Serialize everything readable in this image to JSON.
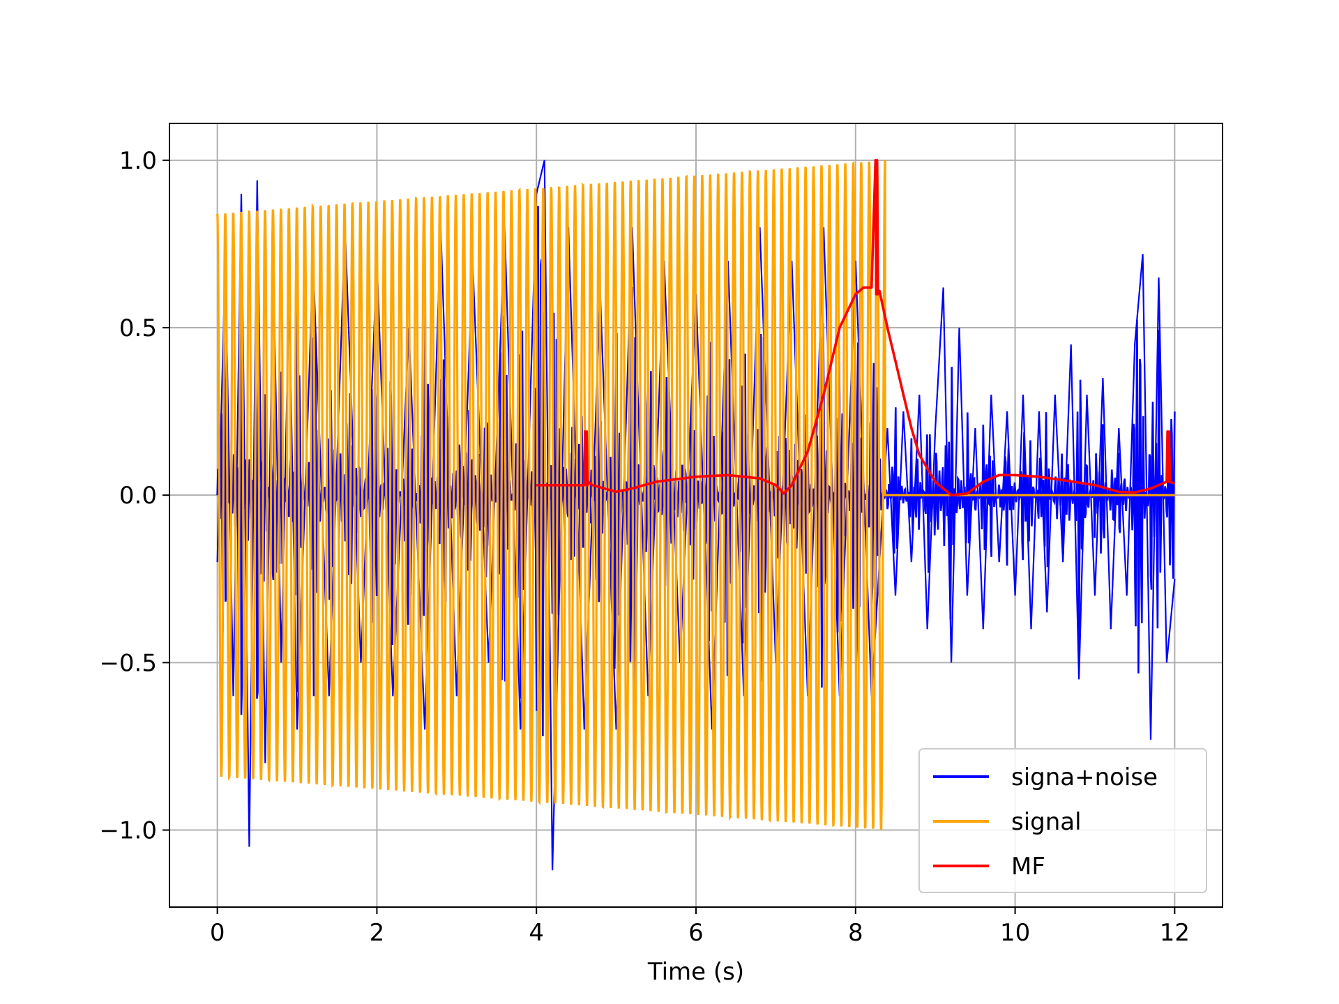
{
  "chart_data": {
    "type": "line",
    "title": "",
    "xlabel": "Time (s)",
    "ylabel": "",
    "xlim": [
      -0.6,
      12.6
    ],
    "ylim": [
      -1.23,
      1.11
    ],
    "xticks": [
      0,
      2,
      4,
      6,
      8,
      10,
      12
    ],
    "xtick_labels": [
      "0",
      "2",
      "4",
      "6",
      "8",
      "10",
      "12"
    ],
    "yticks": [
      1.0,
      0.5,
      0.0,
      -0.5,
      -1.0
    ],
    "ytick_labels": [
      "1.0",
      "0.5",
      "0.0",
      "−0.5",
      "−1.0"
    ],
    "grid": true,
    "legend_position": "lower-right",
    "colors": {
      "noise": "#0000ff",
      "signal": "#ffa500",
      "mf": "#ff0000",
      "grid": "#b0b0b0"
    },
    "series": [
      {
        "name": "signa+noise",
        "color": "#0000ff",
        "description_sampled": true,
        "x": [
          0.0,
          0.1,
          0.2,
          0.3,
          0.4,
          0.5,
          0.6,
          0.7,
          0.8,
          0.9,
          1.0,
          1.2,
          1.4,
          1.6,
          1.8,
          2.0,
          2.2,
          2.4,
          2.6,
          2.8,
          3.0,
          3.2,
          3.4,
          3.6,
          3.8,
          4.0,
          4.1,
          4.2,
          4.4,
          4.6,
          4.8,
          5.0,
          5.2,
          5.4,
          5.6,
          5.8,
          6.0,
          6.2,
          6.4,
          6.6,
          6.8,
          7.0,
          7.2,
          7.4,
          7.6,
          7.8,
          8.0,
          8.2,
          8.4,
          8.5,
          8.6,
          8.7,
          8.8,
          8.9,
          9.0,
          9.1,
          9.2,
          9.3,
          9.4,
          9.5,
          9.6,
          9.7,
          9.8,
          9.9,
          10.0,
          10.1,
          10.2,
          10.3,
          10.4,
          10.5,
          10.6,
          10.7,
          10.8,
          10.9,
          11.0,
          11.1,
          11.2,
          11.3,
          11.4,
          11.5,
          11.6,
          11.7,
          11.8,
          11.9,
          12.0
        ],
        "values": [
          -0.2,
          0.7,
          -0.6,
          0.9,
          -1.05,
          0.94,
          -0.8,
          0.7,
          -0.5,
          0.6,
          -0.7,
          0.7,
          -0.6,
          0.8,
          -0.5,
          0.7,
          -0.6,
          0.5,
          -0.7,
          0.8,
          -0.6,
          0.7,
          -0.5,
          0.8,
          -0.7,
          0.9,
          1.0,
          -1.12,
          0.8,
          -0.7,
          0.6,
          -0.7,
          0.8,
          -0.6,
          0.7,
          -0.5,
          0.6,
          -0.7,
          0.7,
          -0.6,
          0.8,
          -0.5,
          0.7,
          -0.6,
          0.8,
          -0.6,
          0.7,
          -0.6,
          0.2,
          -0.3,
          0.25,
          -0.2,
          0.3,
          -0.4,
          0.2,
          0.62,
          -0.5,
          0.5,
          -0.3,
          0.2,
          -0.4,
          0.3,
          -0.2,
          0.25,
          -0.3,
          0.3,
          -0.4,
          0.25,
          -0.35,
          0.3,
          -0.2,
          0.45,
          -0.55,
          0.3,
          -0.3,
          0.35,
          -0.4,
          0.2,
          -0.3,
          0.45,
          0.72,
          -0.73,
          0.65,
          -0.5,
          -0.25
        ]
      },
      {
        "name": "signal",
        "color": "#ffa500",
        "x_start": 0.0,
        "x_end": 8.37,
        "amplitude_start": 0.84,
        "amplitude_end": 1.0,
        "cycles": 84,
        "zero_after_end_until": 12.0
      },
      {
        "name": "MF",
        "color": "#ff0000",
        "x": [
          4.0,
          4.3,
          4.6,
          4.61,
          4.62,
          4.63,
          4.64,
          4.65,
          4.7,
          5.0,
          5.2,
          5.5,
          6.0,
          6.4,
          6.8,
          7.0,
          7.1,
          7.2,
          7.4,
          7.6,
          7.8,
          8.0,
          8.1,
          8.2,
          8.25,
          8.26,
          8.27,
          8.28,
          8.3,
          8.4,
          8.5,
          8.6,
          8.7,
          8.8,
          9.0,
          9.2,
          9.4,
          9.6,
          9.8,
          10.0,
          10.3,
          10.6,
          11.0,
          11.3,
          11.5,
          11.7,
          11.9,
          11.91,
          11.92,
          11.93,
          11.94,
          12.0
        ],
        "values": [
          0.03,
          0.03,
          0.03,
          0.19,
          0.03,
          0.19,
          0.03,
          0.04,
          0.03,
          0.01,
          0.02,
          0.04,
          0.055,
          0.06,
          0.05,
          0.03,
          0.005,
          0.03,
          0.13,
          0.3,
          0.5,
          0.6,
          0.62,
          0.62,
          1.0,
          0.6,
          1.0,
          0.6,
          0.61,
          0.5,
          0.4,
          0.3,
          0.2,
          0.12,
          0.04,
          0.0,
          0.005,
          0.04,
          0.06,
          0.06,
          0.055,
          0.045,
          0.03,
          0.01,
          0.008,
          0.02,
          0.04,
          0.19,
          0.04,
          0.19,
          0.04,
          0.035
        ]
      }
    ]
  },
  "legend": {
    "items": [
      {
        "label": "signa+noise",
        "color": "#0000ff"
      },
      {
        "label": "signal",
        "color": "#ffa500"
      },
      {
        "label": "MF",
        "color": "#ff0000"
      }
    ]
  }
}
